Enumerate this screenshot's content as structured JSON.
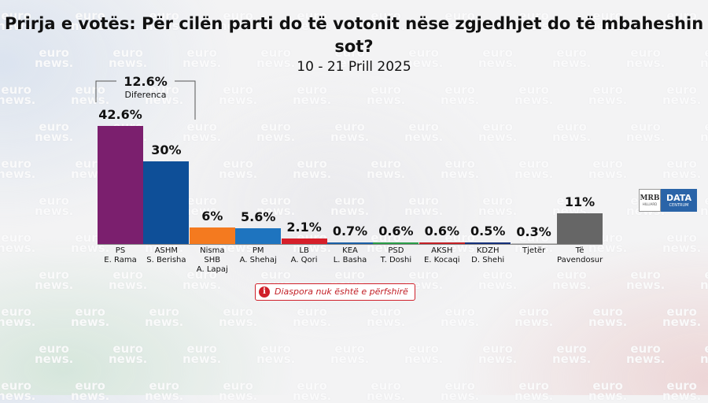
{
  "chart_data": {
    "type": "bar",
    "title": "Prirja e votës: Për cilën parti do të votonit nëse zgjedhjet do të mbaheshin sot?",
    "subtitle": "10 - 21 Prill 2025",
    "ylim": [
      0,
      45
    ],
    "grid": false,
    "categories": [
      [
        "PS",
        "E. Rama"
      ],
      [
        "ASHM",
        "S. Berisha"
      ],
      [
        "Nisma",
        "SHB",
        "A. Lapaj"
      ],
      [
        "PM",
        "A. Shehaj"
      ],
      [
        "LB",
        "A. Qori"
      ],
      [
        "KEA",
        "L. Basha"
      ],
      [
        "PSD",
        "T. Doshi"
      ],
      [
        "AKSH",
        "E. Kocaqi"
      ],
      [
        "KDZH",
        "D. Shehi"
      ],
      [
        "Tjetër"
      ],
      [
        "Të",
        "Pavendosur"
      ]
    ],
    "values": [
      42.6,
      30,
      6,
      5.6,
      2.1,
      0.7,
      0.6,
      0.6,
      0.5,
      0.3,
      11
    ],
    "value_labels": [
      "42.6%",
      "30%",
      "6%",
      "5.6%",
      "2.1%",
      "0.7%",
      "0.6%",
      "0.6%",
      "0.5%",
      "0.3%",
      "11%"
    ],
    "colors": [
      "#7b1f6e",
      "#0e4f98",
      "#f47a1f",
      "#1e74bf",
      "#d61f2a",
      "#1a5fa6",
      "#2a9d48",
      "#c42026",
      "#15307a",
      "#bbbbbb",
      "#666666"
    ],
    "annotation": {
      "value": "12.6%",
      "label": "Diferenca"
    }
  },
  "note": {
    "icon": "info-icon",
    "text": "Diaspora nuk është e përfshirë"
  },
  "watermark": {
    "line1": "euro",
    "line2": "news."
  },
  "logo": {
    "left": "MRB",
    "left_sub": "HILLIARD",
    "right": "DATA",
    "right_sub": "CENTRUM"
  }
}
